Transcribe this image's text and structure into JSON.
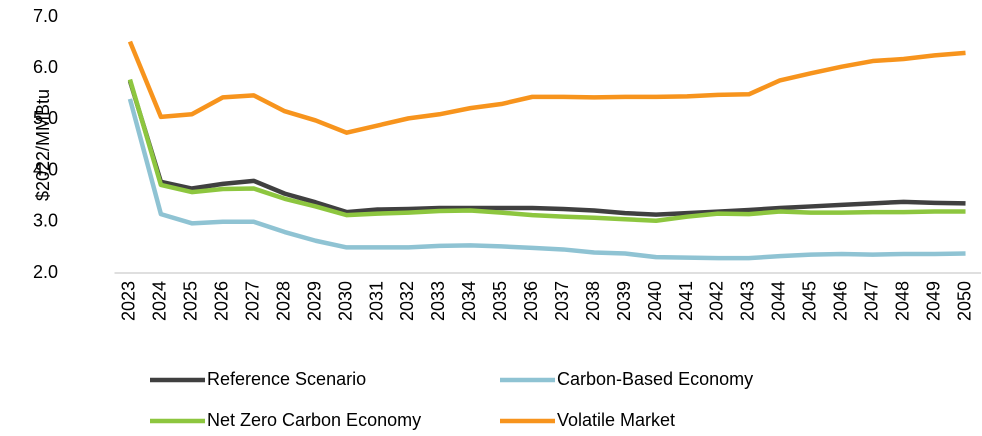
{
  "chart_data": {
    "type": "line",
    "y_label": "$2022/MMBtu",
    "categories": [
      "2023",
      "2024",
      "2025",
      "2026",
      "2027",
      "2028",
      "2029",
      "2030",
      "2031",
      "2032",
      "2033",
      "2034",
      "2035",
      "2036",
      "2037",
      "2038",
      "2039",
      "2040",
      "2041",
      "2042",
      "2043",
      "2044",
      "2045",
      "2046",
      "2047",
      "2048",
      "2049",
      "2050"
    ],
    "series": [
      {
        "name": "Reference Scenario",
        "color": "#404040",
        "values": [
          5.75,
          3.78,
          3.65,
          3.74,
          3.8,
          3.55,
          3.38,
          3.19,
          3.24,
          3.25,
          3.27,
          3.27,
          3.27,
          3.27,
          3.25,
          3.22,
          3.17,
          3.14,
          3.17,
          3.2,
          3.23,
          3.27,
          3.3,
          3.33,
          3.36,
          3.39,
          3.37,
          3.36
        ]
      },
      {
        "name": "Carbon-Based Economy",
        "color": "#8fc3d3",
        "values": [
          5.4,
          3.15,
          2.97,
          3.0,
          3.0,
          2.8,
          2.63,
          2.5,
          2.5,
          2.5,
          2.53,
          2.54,
          2.52,
          2.49,
          2.46,
          2.4,
          2.38,
          2.31,
          2.3,
          2.29,
          2.29,
          2.33,
          2.36,
          2.37,
          2.36,
          2.37,
          2.37,
          2.38
        ]
      },
      {
        "name": "Net Zero Carbon Economy",
        "color": "#8dc63f",
        "values": [
          5.78,
          3.72,
          3.58,
          3.64,
          3.65,
          3.45,
          3.3,
          3.13,
          3.16,
          3.18,
          3.21,
          3.22,
          3.18,
          3.13,
          3.1,
          3.08,
          3.05,
          3.02,
          3.1,
          3.16,
          3.15,
          3.2,
          3.18,
          3.18,
          3.19,
          3.19,
          3.2,
          3.2
        ]
      },
      {
        "name": "Volatile Market",
        "color": "#f7941d",
        "values": [
          6.52,
          5.05,
          5.1,
          5.43,
          5.47,
          5.16,
          4.98,
          4.74,
          4.88,
          5.02,
          5.1,
          5.22,
          5.3,
          5.44,
          5.44,
          5.43,
          5.44,
          5.44,
          5.45,
          5.48,
          5.49,
          5.76,
          5.9,
          6.03,
          6.14,
          6.18,
          6.25,
          6.3
        ]
      }
    ],
    "ylim": [
      2,
      7
    ],
    "yticks": [
      {
        "value": 2,
        "label": "2.0"
      },
      {
        "value": 3,
        "label": "3.0"
      },
      {
        "value": 4,
        "label": "4.0"
      },
      {
        "value": 5,
        "label": "5.0"
      },
      {
        "value": 6,
        "label": "6.0"
      },
      {
        "value": 7,
        "label": "7.0"
      }
    ],
    "grid": false
  }
}
